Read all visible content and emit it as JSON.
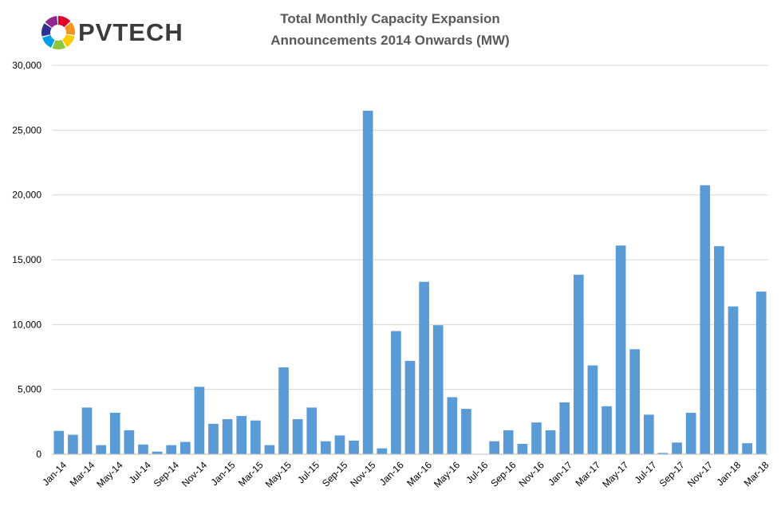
{
  "logo": {
    "text": "PVTECH",
    "colors": [
      "#e4002b",
      "#f7941d",
      "#ffcc00",
      "#8dc63f",
      "#00a0e9",
      "#2e3192",
      "#92278f"
    ]
  },
  "chart_data": {
    "type": "bar",
    "title": [
      "Total  Monthly  Capacity  Expansion",
      "Announcements  2014 Onwards  (MW)"
    ],
    "xlabel": "",
    "ylabel": "",
    "ylim": [
      0,
      30000
    ],
    "yticks": [
      0,
      5000,
      10000,
      15000,
      20000,
      25000,
      30000
    ],
    "ytick_labels": [
      "0",
      "5,000",
      "10,000",
      "15,000",
      "20,000",
      "25,000",
      "30,000"
    ],
    "grid": true,
    "legend": "none",
    "bar_color": "#5b9bd5",
    "categories": [
      "Jan-14",
      "Feb-14",
      "Mar-14",
      "Apr-14",
      "May-14",
      "Jun-14",
      "Jul-14",
      "Aug-14",
      "Sep-14",
      "Oct-14",
      "Nov-14",
      "Dec-14",
      "Jan-15",
      "Feb-15",
      "Mar-15",
      "Apr-15",
      "May-15",
      "Jun-15",
      "Jul-15",
      "Aug-15",
      "Sep-15",
      "Oct-15",
      "Nov-15",
      "Dec-15",
      "Jan-16",
      "Feb-16",
      "Mar-16",
      "Apr-16",
      "May-16",
      "Jun-16",
      "Jul-16",
      "Aug-16",
      "Sep-16",
      "Oct-16",
      "Nov-16",
      "Dec-16",
      "Jan-17",
      "Feb-17",
      "Mar-17",
      "Apr-17",
      "May-17",
      "Jun-17",
      "Jul-17",
      "Aug-17",
      "Sep-17",
      "Oct-17",
      "Nov-17",
      "Dec-17",
      "Jan-18",
      "Feb-18",
      "Mar-18"
    ],
    "xtick_labels": [
      "Jan-14",
      "Mar-14",
      "May-14",
      "Jul-14",
      "Sep-14",
      "Nov-14",
      "Jan-15",
      "Mar-15",
      "May-15",
      "Jul-15",
      "Sep-15",
      "Nov-15",
      "Jan-16",
      "Mar-16",
      "May-16",
      "Jul-16",
      "Sep-16",
      "Nov-16",
      "Jan-17",
      "Mar-17",
      "May-17",
      "Jul-17",
      "Sep-17",
      "Nov-17",
      "Jan-18",
      "Mar-18"
    ],
    "values": [
      1800,
      1500,
      3600,
      700,
      3200,
      1850,
      750,
      200,
      700,
      950,
      5200,
      2350,
      2700,
      2950,
      2600,
      700,
      6700,
      2700,
      3600,
      1000,
      1450,
      1050,
      26500,
      450,
      9500,
      7200,
      13300,
      9950,
      4400,
      3500,
      0,
      1000,
      1850,
      800,
      2450,
      1850,
      4000,
      13850,
      6850,
      3700,
      16100,
      8100,
      3050,
      100,
      900,
      3200,
      20750,
      16050,
      11400,
      850,
      12550
    ]
  }
}
